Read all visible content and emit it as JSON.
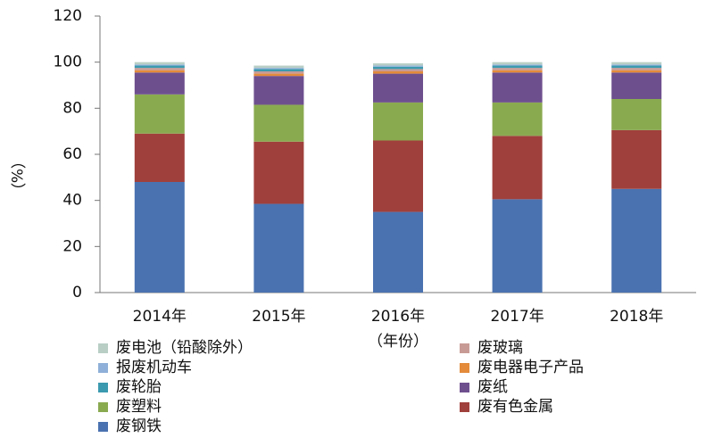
{
  "chart_data": {
    "type": "stacked-bar",
    "x_label": "（年份）",
    "y_label": "（%）",
    "categories": [
      "2014年",
      "2015年",
      "2016年",
      "2017年",
      "2018年"
    ],
    "ylim": [
      0,
      120
    ],
    "yticks": [
      0,
      20,
      40,
      60,
      80,
      100,
      120
    ],
    "series": [
      {
        "name": "废钢铁",
        "color": "#4a72b0",
        "values": [
          48,
          38.5,
          35,
          40.5,
          45
        ]
      },
      {
        "name": "废有色金属",
        "color": "#a0403c",
        "values": [
          21,
          27,
          31,
          27.5,
          25.5
        ]
      },
      {
        "name": "废塑料",
        "color": "#8aaa50",
        "values": [
          17,
          16,
          16.5,
          14.5,
          13.5
        ]
      },
      {
        "name": "废纸",
        "color": "#6e4f8e",
        "values": [
          9.5,
          12.5,
          12.5,
          13,
          11.5
        ]
      },
      {
        "name": "废电器电子产品",
        "color": "#e38b3a",
        "values": [
          1,
          1,
          1,
          1,
          1
        ]
      },
      {
        "name": "废玻璃",
        "color": "#c89a96",
        "values": [
          1,
          1,
          1,
          1,
          1
        ]
      },
      {
        "name": "废轮胎",
        "color": "#3b9aaf",
        "values": [
          1,
          1,
          1,
          1,
          1
        ]
      },
      {
        "name": "报废机动车",
        "color": "#8fb0d8",
        "values": [
          0.5,
          0.5,
          0.5,
          0.5,
          0.5
        ]
      },
      {
        "name": "废电池（铅酸除外）",
        "color": "#b9cfc6",
        "values": [
          1,
          1,
          1,
          1,
          1
        ]
      }
    ]
  }
}
